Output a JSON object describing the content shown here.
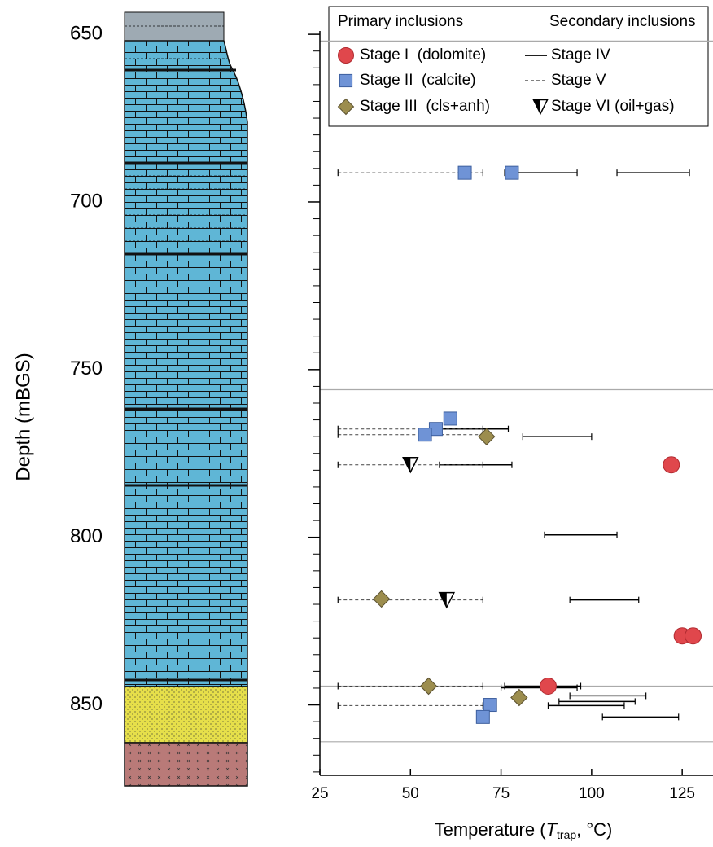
{
  "chart_data": {
    "type": "scatter",
    "xlabel": {
      "text": "Temperature (",
      "italic": "T",
      "sub": "trap",
      "tail": ", °C)"
    },
    "ylabel": "Depth (mBGS)",
    "legend_primary": "Primary inclusions",
    "legend_secondary": "Secondary inclusions",
    "xlim": [
      25,
      133.5
    ],
    "ylim": [
      649,
      871
    ],
    "y_reversed": true,
    "xticks": [
      25,
      50,
      75,
      100,
      125
    ],
    "yticks": [
      650,
      700,
      750,
      800,
      850
    ],
    "yticks_minor": [
      655,
      660,
      665,
      670,
      675,
      680,
      685,
      690,
      695,
      705,
      710,
      715,
      720,
      725,
      730,
      735,
      740,
      745,
      755,
      760,
      765,
      770,
      775,
      780,
      785,
      790,
      795,
      805,
      810,
      815,
      820,
      825,
      830,
      835,
      840,
      845,
      855,
      860,
      865,
      870
    ],
    "boundaries": [
      652,
      756,
      844.4,
      861
    ],
    "series": [
      {
        "name": "Stage I  (dolomite)",
        "marker": "circle",
        "color": "#e0474c",
        "x": [
          122,
          125,
          128,
          88
        ],
        "y": [
          778.4,
          829.4,
          829.4,
          844.4
        ]
      },
      {
        "name": "Stage II  (calcite)",
        "marker": "square",
        "color": "#6f93d6",
        "x": [
          65,
          78,
          61,
          57,
          54,
          72,
          70
        ],
        "y": [
          691.3,
          691.3,
          764.6,
          767.7,
          769.4,
          850,
          853.6
        ]
      },
      {
        "name": "Stage III  (cls+anh)",
        "marker": "diamond",
        "color": "#9c8d4e",
        "x": [
          71,
          42,
          55,
          80
        ],
        "y": [
          770,
          818.4,
          844.4,
          847.8
        ]
      }
    ],
    "secondary": [
      {
        "name": "Stage IV",
        "style": "solid",
        "x_start": [
          76,
          107,
          57,
          81,
          58,
          87,
          94,
          76,
          75,
          94,
          91,
          88,
          103
        ],
        "x_end": [
          96,
          127,
          77,
          100,
          78,
          107,
          113,
          97,
          96,
          115,
          112,
          109,
          124
        ],
        "y": [
          691.3,
          691.3,
          767.7,
          770,
          778.4,
          799.3,
          818.7,
          844.4,
          844.9,
          847.3,
          849,
          850.2,
          853.6
        ]
      },
      {
        "name": "Stage V",
        "style": "dashed",
        "x_start": [
          30,
          30,
          30,
          30,
          30,
          30,
          30
        ],
        "x_end": [
          70,
          70,
          70,
          70,
          70,
          70,
          70
        ],
        "y": [
          691.3,
          767.7,
          769.4,
          778.4,
          818.7,
          844.4,
          850.2
        ]
      },
      {
        "name": "Stage VI (oil+gas)",
        "style": "triangle",
        "color": "#000000",
        "x": [
          50,
          60
        ],
        "y": [
          778.4,
          818.7
        ]
      }
    ]
  }
}
